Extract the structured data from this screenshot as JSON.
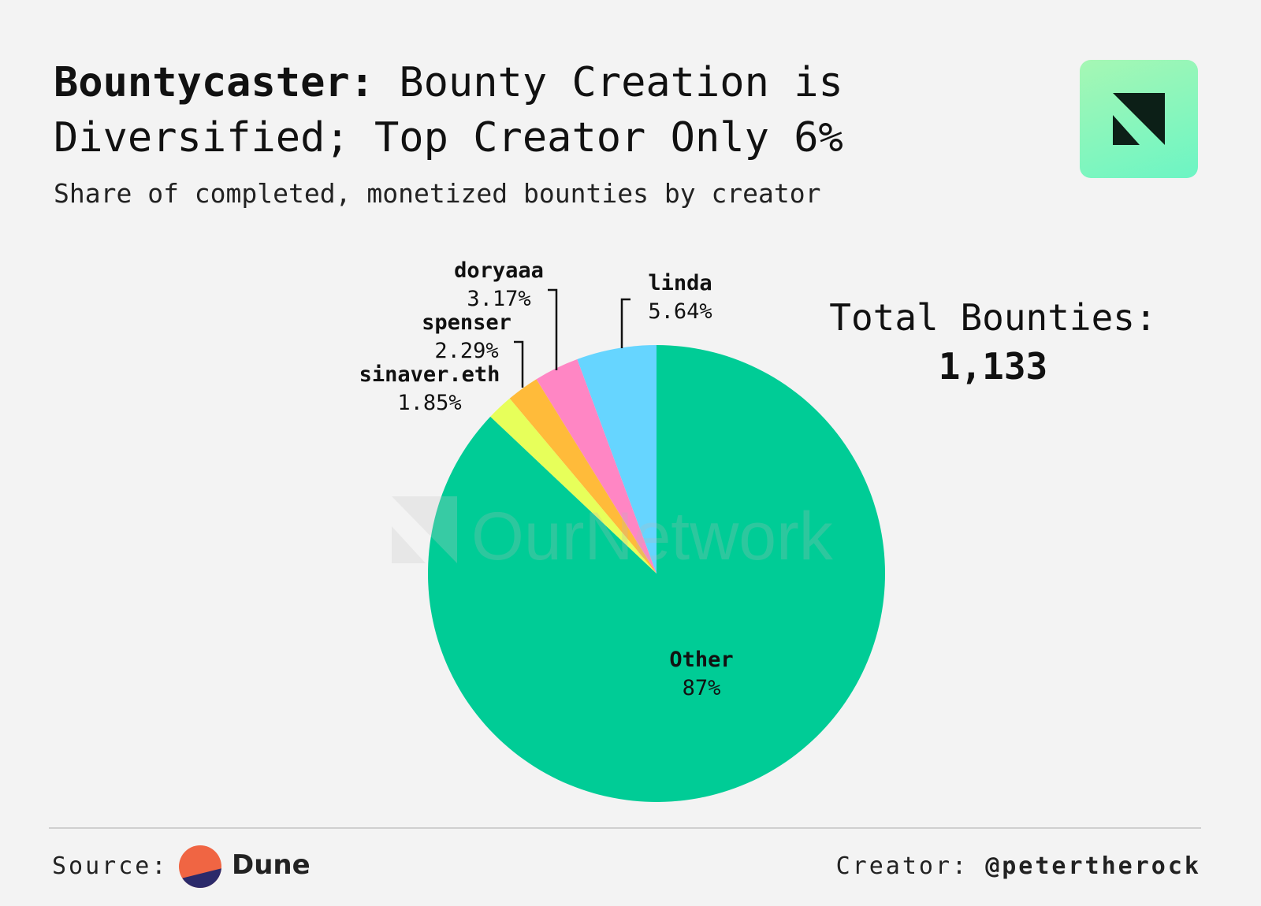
{
  "header": {
    "title_brand": "Bountycaster:",
    "title_rest_line1": "Bounty Creation is",
    "title_line2": "Diversified; Top Creator Only 6%",
    "subtitle": "Share of completed, monetized bounties by creator"
  },
  "logo": {
    "icon": "ournetwork-logo-icon",
    "color": "#7ff5bd"
  },
  "watermark": {
    "text": "OurNetwork"
  },
  "total": {
    "label": "Total Bounties:",
    "value": "1,133"
  },
  "chart_data": {
    "type": "pie",
    "title": "Bountycaster: Bounty Creation is Diversified; Top Creator Only 6%",
    "subtitle": "Share of completed, monetized bounties by creator",
    "slices": [
      {
        "name": "linda",
        "value": 5.64,
        "label": "5.64%",
        "color": "#66d5ff"
      },
      {
        "name": "doryaaa",
        "value": 3.17,
        "label": "3.17%",
        "color": "#ff86c4"
      },
      {
        "name": "spenser",
        "value": 2.29,
        "label": "2.29%",
        "color": "#ffbb3a"
      },
      {
        "name": "sinaver.eth",
        "value": 1.85,
        "label": "1.85%",
        "color": "#e7ff5a"
      },
      {
        "name": "Other",
        "value": 87,
        "label": "87%",
        "color": "#00cc96"
      }
    ],
    "start": "12 o'clock",
    "direction": "counter-clockwise",
    "legend": "none"
  },
  "footer": {
    "source_label": "Source:",
    "source_name": "Dune",
    "creator_label": "Creator:",
    "creator_handle": "@petertherock"
  }
}
